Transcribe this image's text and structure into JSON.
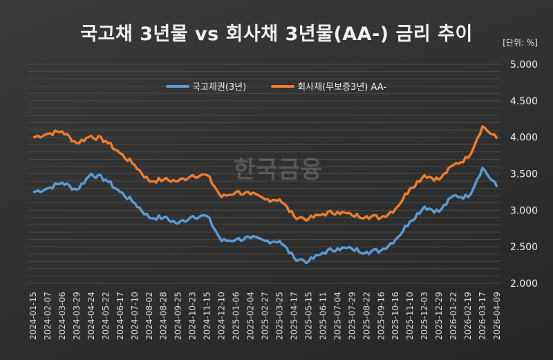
{
  "header": {
    "title": "국고채 3년물 vs 회사채 3년물(AA-) 금리 추이",
    "unit": "[단위: %]"
  },
  "watermark": "한국금융",
  "legend": [
    {
      "label": "국고채권(3년)",
      "color": "#5b9bd5"
    },
    {
      "label": "회사채(무보증3년) AA-",
      "color": "#ed7d31"
    }
  ],
  "chart_data": {
    "type": "line",
    "title": "국고채 3년물 vs 회사채 3년물(AA-) 금리 추이",
    "xlabel": "",
    "ylabel": "[단위: %]",
    "ylim": [
      2.0,
      5.0
    ],
    "yticks": [
      "2.000",
      "2.500",
      "3.000",
      "3.500",
      "4.000",
      "4.500",
      "5.000"
    ],
    "grid": true,
    "legend_position": "top",
    "categories": [
      "2024-01-15",
      "2024-02-07",
      "2024-03-06",
      "2024-03-29",
      "2024-04-24",
      "2024-05-22",
      "2024-06-17",
      "2024-07-10",
      "2024-08-02",
      "2024-08-28",
      "2024-09-25",
      "2024-10-23",
      "2024-11-15",
      "2024-12-10",
      "2025-01-06",
      "2025-02-04",
      "2025-02-27",
      "2025-03-25",
      "2025-04-17",
      "2025-05-15",
      "2025-06-11",
      "2025-07-04",
      "2025-07-29",
      "2025-08-22",
      "2025-09-16",
      "2025-10-16",
      "2025-11-10",
      "2025-12-03",
      "2025-12-29",
      "2026-01-22",
      "2026-02-19",
      "2026-03-17",
      "2026-04-09"
    ],
    "series": [
      {
        "name": "국고채권(3년)",
        "color": "#5b9bd5",
        "values": [
          3.25,
          3.3,
          3.38,
          3.28,
          3.5,
          3.42,
          3.25,
          3.1,
          2.9,
          2.9,
          2.82,
          2.92,
          2.92,
          2.58,
          2.6,
          2.62,
          2.58,
          2.58,
          2.35,
          2.3,
          2.42,
          2.48,
          2.47,
          2.43,
          2.45,
          2.6,
          2.85,
          3.05,
          2.98,
          3.2,
          3.18,
          3.58,
          3.32
        ]
      },
      {
        "name": "회사채(무보증3년) AA-",
        "color": "#ed7d31",
        "values": [
          4.0,
          4.05,
          4.08,
          3.92,
          4.02,
          3.95,
          3.78,
          3.62,
          3.4,
          3.42,
          3.4,
          3.48,
          3.48,
          3.18,
          3.25,
          3.22,
          3.15,
          3.15,
          2.92,
          2.88,
          2.95,
          2.98,
          2.93,
          2.92,
          2.9,
          3.02,
          3.3,
          3.48,
          3.42,
          3.62,
          3.72,
          4.15,
          3.98
        ]
      }
    ]
  }
}
